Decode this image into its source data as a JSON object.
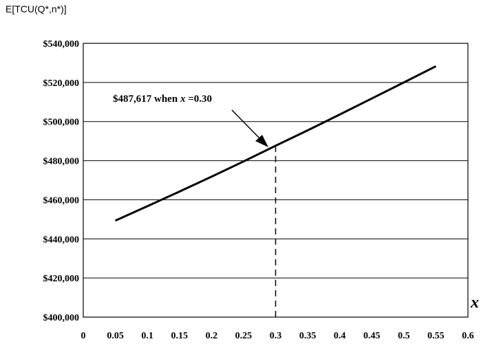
{
  "chart_data": {
    "type": "line",
    "ylabel": "E[TCU(Q*,n*)]",
    "xlabel": "x",
    "xlim": [
      0,
      0.6
    ],
    "ylim": [
      400000,
      540000
    ],
    "x_ticks": [
      "0",
      "0.05",
      "0.1",
      "0.15",
      "0.2",
      "0.25",
      "0.3",
      "0.35",
      "0.4",
      "0.45",
      "0.5",
      "0.55",
      "0.6"
    ],
    "y_ticks": [
      "$400,000",
      "$420,000",
      "$440,000",
      "$460,000",
      "$480,000",
      "$500,000",
      "$520,000",
      "$540,000"
    ],
    "grid": "horizontal",
    "series": [
      {
        "x": [
          0.05,
          0.1,
          0.15,
          0.2,
          0.25,
          0.3,
          0.35,
          0.4,
          0.45,
          0.5,
          0.55
        ],
        "values": [
          449300,
          456700,
          464200,
          471800,
          479600,
          487617,
          495500,
          503600,
          511800,
          520000,
          528300
        ]
      }
    ],
    "annotation": {
      "text_prefix": "$487,617  when ",
      "text_var": "x",
      "text_suffix": " =0.30",
      "x": 0.3,
      "y": 487617
    }
  }
}
